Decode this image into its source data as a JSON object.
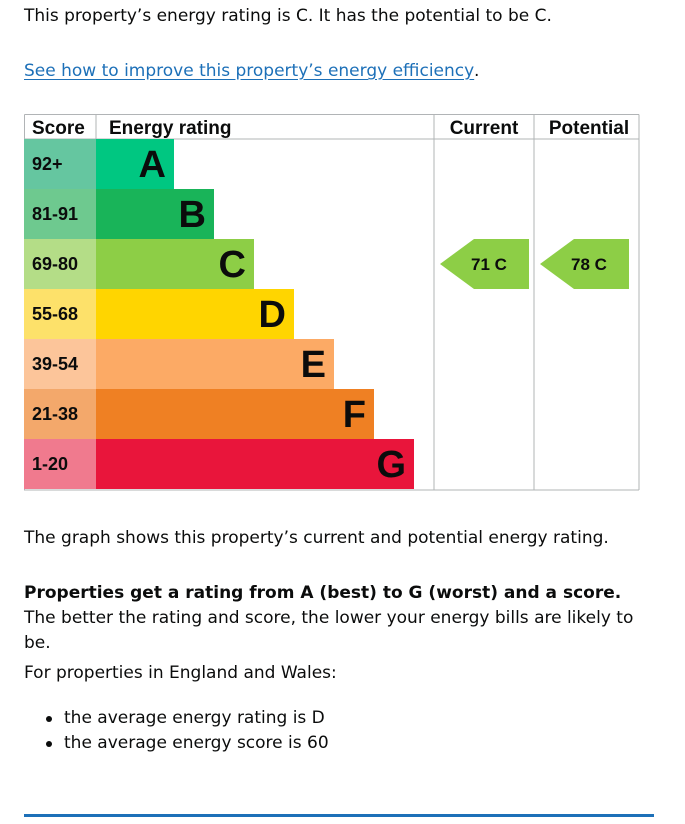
{
  "intro": {
    "text": "This property’s energy rating is C. It has the potential to be C."
  },
  "improve_link": {
    "label": "See how to improve this property’s energy efficiency",
    "suffix": "."
  },
  "chart_data": {
    "type": "bar",
    "headers": {
      "score": "Score",
      "rating": "Energy rating",
      "current": "Current",
      "potential": "Potential"
    },
    "bands": [
      {
        "score": "92+",
        "letter": "A",
        "color": "#00c781",
        "score_color": "#65c6a0"
      },
      {
        "score": "81-91",
        "letter": "B",
        "color": "#19b459",
        "score_color": "#6ec98f"
      },
      {
        "score": "69-80",
        "letter": "C",
        "color": "#8dce46",
        "score_color": "#b4dd87"
      },
      {
        "score": "55-68",
        "letter": "D",
        "color": "#ffd500",
        "score_color": "#fde16a"
      },
      {
        "score": "39-54",
        "letter": "E",
        "color": "#fcaa65",
        "score_color": "#fcc59a"
      },
      {
        "score": "21-38",
        "letter": "F",
        "color": "#ef8023",
        "score_color": "#f3a86b"
      },
      {
        "score": "1-20",
        "letter": "G",
        "color": "#e9153b",
        "score_color": "#f07a8e"
      }
    ],
    "current": {
      "score": 71,
      "letter": "C",
      "label": "71 C"
    },
    "potential": {
      "score": 78,
      "letter": "C",
      "label": "78 C"
    },
    "marker_color": "#8dce46"
  },
  "graph_note": "The graph shows this property’s current and potential energy rating.",
  "ratings_para": {
    "bold": "Properties get a rating from A (best) to G (worst) and a score.",
    "rest": " The better the rating and score, the lower your energy bills are likely to be."
  },
  "regions": "For properties in England and Wales:",
  "averages": [
    "the average energy rating is D",
    "the average energy score is 60"
  ]
}
